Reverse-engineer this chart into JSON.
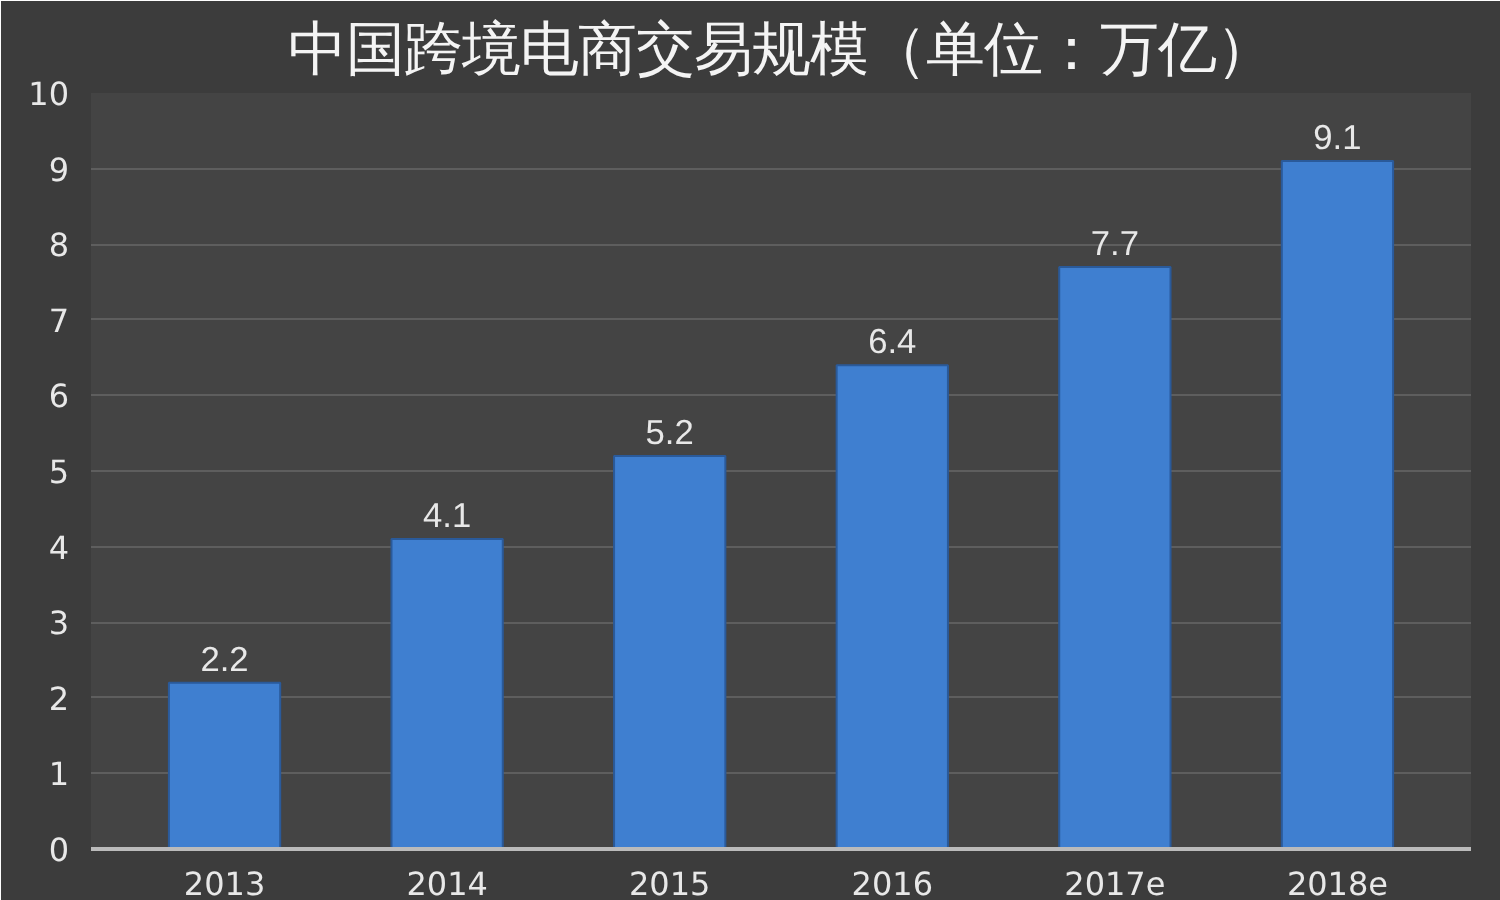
{
  "chart_data": {
    "type": "bar",
    "title": "中国跨境电商交易规模（单位：万亿）",
    "categories": [
      "2013",
      "2014",
      "2015",
      "2016",
      "2017e",
      "2018e"
    ],
    "values": [
      2.2,
      4.1,
      5.2,
      6.4,
      7.7,
      9.1
    ],
    "color": "#3f7fd0",
    "ylim": [
      0,
      10
    ],
    "yticks": [
      0,
      1,
      2,
      3,
      4,
      5,
      6,
      7,
      8,
      9,
      10
    ],
    "grid": "y",
    "data_labels": true
  }
}
